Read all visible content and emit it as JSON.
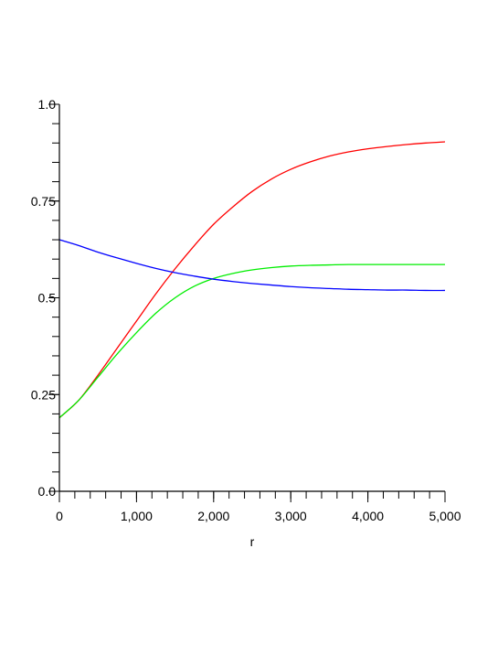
{
  "chart_data": {
    "type": "line",
    "title": "",
    "xlabel": "r",
    "ylabel": "",
    "xlim": [
      0,
      5000
    ],
    "ylim": [
      0,
      1.0
    ],
    "grid": false,
    "legend": "none",
    "x_ticks": [
      {
        "value": 0,
        "label": "0"
      },
      {
        "value": 1000,
        "label": "1,000"
      },
      {
        "value": 2000,
        "label": "2,000"
      },
      {
        "value": 3000,
        "label": "3,000"
      },
      {
        "value": 4000,
        "label": "4,000"
      },
      {
        "value": 5000,
        "label": "5,000"
      }
    ],
    "x_minor_step": 200,
    "y_ticks": [
      {
        "value": 0.0,
        "label": "0.0"
      },
      {
        "value": 0.25,
        "label": "0.25"
      },
      {
        "value": 0.5,
        "label": "0.5"
      },
      {
        "value": 0.75,
        "label": "0.75"
      },
      {
        "value": 1.0,
        "label": "1.0"
      }
    ],
    "y_minor_step": 0.05,
    "x": [
      0,
      250,
      500,
      750,
      1000,
      1250,
      1500,
      1750,
      2000,
      2250,
      2500,
      2750,
      3000,
      3250,
      3500,
      3750,
      4000,
      4250,
      4500,
      4750,
      5000
    ],
    "series": [
      {
        "color": "#ff0000",
        "values": [
          0.19,
          0.235,
          0.3,
          0.37,
          0.44,
          0.51,
          0.575,
          0.635,
          0.69,
          0.735,
          0.775,
          0.807,
          0.832,
          0.851,
          0.866,
          0.877,
          0.885,
          0.891,
          0.896,
          0.9,
          0.903
        ]
      },
      {
        "color": "#00ee00",
        "values": [
          0.19,
          0.235,
          0.295,
          0.355,
          0.41,
          0.46,
          0.5,
          0.53,
          0.55,
          0.563,
          0.572,
          0.578,
          0.582,
          0.584,
          0.585,
          0.586,
          0.586,
          0.586,
          0.586,
          0.586,
          0.586
        ]
      },
      {
        "color": "#0000ff",
        "values": [
          0.65,
          0.635,
          0.618,
          0.603,
          0.589,
          0.576,
          0.565,
          0.556,
          0.548,
          0.542,
          0.537,
          0.533,
          0.529,
          0.526,
          0.524,
          0.522,
          0.521,
          0.52,
          0.52,
          0.519,
          0.519
        ]
      }
    ]
  }
}
